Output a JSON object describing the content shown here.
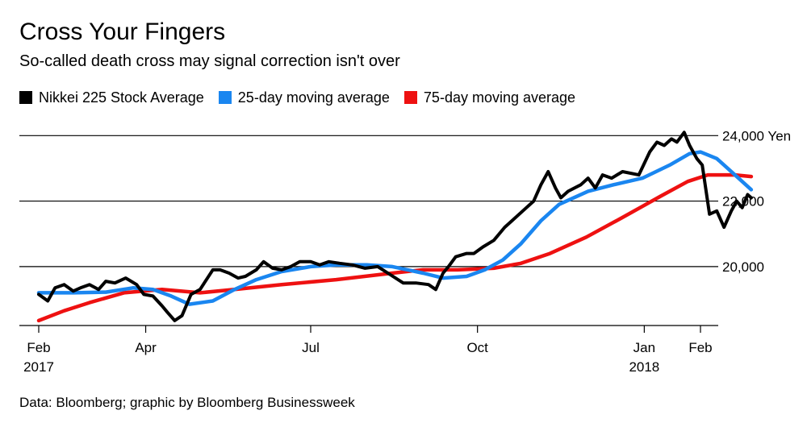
{
  "title": "Cross Your Fingers",
  "subtitle": "So-called death cross may signal correction isn't over",
  "source": "Data: Bloomberg; graphic by Bloomberg Businessweek",
  "colors": {
    "nikkei": "#000000",
    "ma25": "#1a86f0",
    "ma75": "#ee1111",
    "grid": "#000000"
  },
  "chart_data": {
    "type": "line",
    "ylim": [
      18200,
      24500
    ],
    "grid": true,
    "legend_position": "top-left",
    "y_ticks": [
      {
        "value": 24000,
        "label": "24,000 Yen"
      },
      {
        "value": 22000,
        "label": "22,000"
      },
      {
        "value": 20000,
        "label": "20,000"
      }
    ],
    "x_ticks": [
      {
        "date": "2017-02-01",
        "label": "Feb",
        "year": "2017"
      },
      {
        "date": "2017-04-01",
        "label": "Apr",
        "year": ""
      },
      {
        "date": "2017-07-01",
        "label": "Jul",
        "year": ""
      },
      {
        "date": "2017-10-01",
        "label": "Oct",
        "year": ""
      },
      {
        "date": "2018-01-01",
        "label": "Jan",
        "year": "2018"
      },
      {
        "date": "2018-02-01",
        "label": "Feb",
        "year": ""
      }
    ],
    "series": [
      {
        "name": "Nikkei 225 Stock Average",
        "color": "#000000",
        "points": [
          [
            "2017-02-01",
            19150
          ],
          [
            "2017-02-06",
            18950
          ],
          [
            "2017-02-10",
            19350
          ],
          [
            "2017-02-15",
            19450
          ],
          [
            "2017-02-20",
            19250
          ],
          [
            "2017-02-24",
            19350
          ],
          [
            "2017-03-01",
            19450
          ],
          [
            "2017-03-06",
            19300
          ],
          [
            "2017-03-10",
            19550
          ],
          [
            "2017-03-15",
            19500
          ],
          [
            "2017-03-21",
            19650
          ],
          [
            "2017-03-27",
            19450
          ],
          [
            "2017-03-31",
            19150
          ],
          [
            "2017-04-05",
            19100
          ],
          [
            "2017-04-10",
            18800
          ],
          [
            "2017-04-13",
            18600
          ],
          [
            "2017-04-17",
            18350
          ],
          [
            "2017-04-21",
            18500
          ],
          [
            "2017-04-26",
            19150
          ],
          [
            "2017-05-01",
            19300
          ],
          [
            "2017-05-08",
            19900
          ],
          [
            "2017-05-12",
            19900
          ],
          [
            "2017-05-17",
            19800
          ],
          [
            "2017-05-22",
            19650
          ],
          [
            "2017-05-26",
            19700
          ],
          [
            "2017-06-01",
            19900
          ],
          [
            "2017-06-05",
            20150
          ],
          [
            "2017-06-10",
            19950
          ],
          [
            "2017-06-15",
            19900
          ],
          [
            "2017-06-20",
            20000
          ],
          [
            "2017-06-25",
            20150
          ],
          [
            "2017-07-01",
            20150
          ],
          [
            "2017-07-06",
            20050
          ],
          [
            "2017-07-11",
            20150
          ],
          [
            "2017-07-17",
            20100
          ],
          [
            "2017-07-24",
            20050
          ],
          [
            "2017-07-31",
            19950
          ],
          [
            "2017-08-07",
            20000
          ],
          [
            "2017-08-14",
            19750
          ],
          [
            "2017-08-21",
            19500
          ],
          [
            "2017-08-28",
            19500
          ],
          [
            "2017-09-04",
            19450
          ],
          [
            "2017-09-08",
            19300
          ],
          [
            "2017-09-12",
            19800
          ],
          [
            "2017-09-15",
            20000
          ],
          [
            "2017-09-19",
            20300
          ],
          [
            "2017-09-25",
            20400
          ],
          [
            "2017-09-29",
            20400
          ],
          [
            "2017-10-04",
            20600
          ],
          [
            "2017-10-10",
            20800
          ],
          [
            "2017-10-16",
            21200
          ],
          [
            "2017-10-20",
            21400
          ],
          [
            "2017-10-26",
            21700
          ],
          [
            "2017-11-01",
            22000
          ],
          [
            "2017-11-05",
            22500
          ],
          [
            "2017-11-09",
            22900
          ],
          [
            "2017-11-13",
            22400
          ],
          [
            "2017-11-16",
            22100
          ],
          [
            "2017-11-20",
            22300
          ],
          [
            "2017-11-27",
            22500
          ],
          [
            "2017-12-01",
            22700
          ],
          [
            "2017-12-05",
            22400
          ],
          [
            "2017-12-09",
            22800
          ],
          [
            "2017-12-14",
            22700
          ],
          [
            "2017-12-20",
            22900
          ],
          [
            "2017-12-29",
            22800
          ],
          [
            "2018-01-04",
            23500
          ],
          [
            "2018-01-08",
            23800
          ],
          [
            "2018-01-12",
            23700
          ],
          [
            "2018-01-16",
            23900
          ],
          [
            "2018-01-19",
            23800
          ],
          [
            "2018-01-23",
            24100
          ],
          [
            "2018-01-26",
            23700
          ],
          [
            "2018-01-30",
            23300
          ],
          [
            "2018-02-02",
            23100
          ],
          [
            "2018-02-06",
            21600
          ],
          [
            "2018-02-10",
            21700
          ],
          [
            "2018-02-14",
            21200
          ],
          [
            "2018-02-18",
            21700
          ],
          [
            "2018-02-21",
            22000
          ],
          [
            "2018-02-24",
            21800
          ],
          [
            "2018-02-27",
            22200
          ],
          [
            "2018-03-01",
            22100
          ]
        ]
      },
      {
        "name": "25-day moving average",
        "color": "#1a86f0",
        "points": [
          [
            "2017-02-01",
            19200
          ],
          [
            "2017-02-20",
            19200
          ],
          [
            "2017-03-10",
            19220
          ],
          [
            "2017-03-25",
            19350
          ],
          [
            "2017-04-05",
            19300
          ],
          [
            "2017-04-15",
            19100
          ],
          [
            "2017-04-25",
            18850
          ],
          [
            "2017-05-08",
            18950
          ],
          [
            "2017-05-20",
            19300
          ],
          [
            "2017-06-01",
            19600
          ],
          [
            "2017-06-15",
            19850
          ],
          [
            "2017-07-01",
            20000
          ],
          [
            "2017-07-15",
            20050
          ],
          [
            "2017-08-01",
            20050
          ],
          [
            "2017-08-15",
            20000
          ],
          [
            "2017-09-01",
            19800
          ],
          [
            "2017-09-12",
            19650
          ],
          [
            "2017-09-25",
            19700
          ],
          [
            "2017-10-05",
            19900
          ],
          [
            "2017-10-15",
            20200
          ],
          [
            "2017-10-25",
            20700
          ],
          [
            "2017-11-05",
            21400
          ],
          [
            "2017-11-15",
            21900
          ],
          [
            "2017-12-01",
            22300
          ],
          [
            "2017-12-15",
            22500
          ],
          [
            "2017-12-31",
            22700
          ],
          [
            "2018-01-15",
            23100
          ],
          [
            "2018-01-26",
            23450
          ],
          [
            "2018-02-01",
            23500
          ],
          [
            "2018-02-10",
            23300
          ],
          [
            "2018-02-20",
            22800
          ],
          [
            "2018-03-01",
            22350
          ]
        ]
      },
      {
        "name": "75-day moving average",
        "color": "#ee1111",
        "points": [
          [
            "2017-02-01",
            18350
          ],
          [
            "2017-02-15",
            18650
          ],
          [
            "2017-03-01",
            18900
          ],
          [
            "2017-03-20",
            19200
          ],
          [
            "2017-04-10",
            19300
          ],
          [
            "2017-05-01",
            19200
          ],
          [
            "2017-05-20",
            19300
          ],
          [
            "2017-06-15",
            19450
          ],
          [
            "2017-07-15",
            19600
          ],
          [
            "2017-08-15",
            19800
          ],
          [
            "2017-09-01",
            19900
          ],
          [
            "2017-09-20",
            19900
          ],
          [
            "2017-10-10",
            19950
          ],
          [
            "2017-10-25",
            20100
          ],
          [
            "2017-11-10",
            20400
          ],
          [
            "2017-11-30",
            20900
          ],
          [
            "2017-12-20",
            21500
          ],
          [
            "2018-01-10",
            22150
          ],
          [
            "2018-01-25",
            22600
          ],
          [
            "2018-02-05",
            22800
          ],
          [
            "2018-02-20",
            22800
          ],
          [
            "2018-03-01",
            22750
          ]
        ]
      }
    ]
  }
}
